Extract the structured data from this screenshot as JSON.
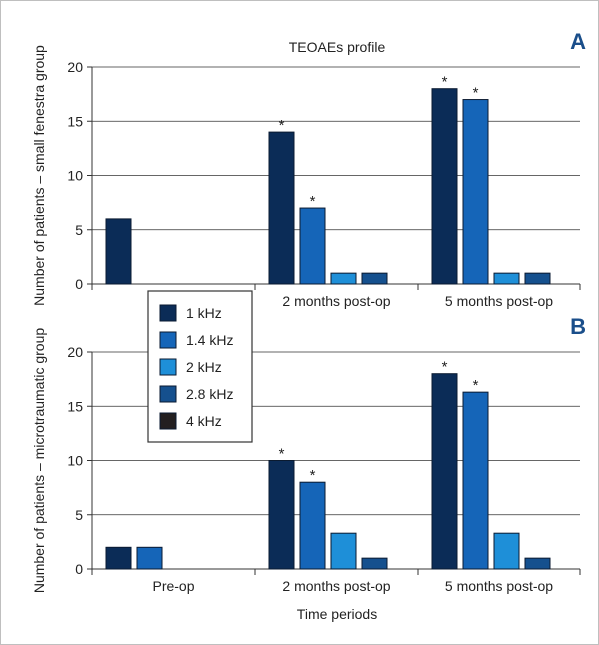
{
  "chart_data": {
    "type": "bar",
    "title": "TEOAEs profile",
    "xlabel": "Time periods",
    "categories": [
      "Pre-op",
      "2 months post-op",
      "5 months post-op"
    ],
    "legend": {
      "placement": "top-left-of-lower-panel",
      "entries": [
        "1 kHz",
        "1.4 kHz",
        "2 kHz",
        "2.8 kHz",
        "4 kHz"
      ]
    },
    "colors": [
      "#0b2c57",
      "#1565b8",
      "#1e8fd8",
      "#15508e",
      "#231f20"
    ],
    "significance_marker": "*",
    "panels": [
      {
        "letter": "A",
        "ylabel": "Number of patients – small fenestra group",
        "ylim": [
          0,
          20
        ],
        "yticks": [
          0,
          5,
          10,
          15,
          20
        ],
        "grid": true,
        "series": [
          {
            "name": "1 kHz",
            "values": [
              6,
              14,
              18
            ]
          },
          {
            "name": "1.4 kHz",
            "values": [
              0,
              7,
              17
            ]
          },
          {
            "name": "2 kHz",
            "values": [
              0,
              1,
              1
            ]
          },
          {
            "name": "2.8 kHz",
            "values": [
              0,
              1,
              1
            ]
          },
          {
            "name": "4 kHz",
            "values": [
              0,
              0,
              0
            ]
          }
        ],
        "significant": [
          [
            0,
            1
          ],
          [
            0,
            2
          ],
          [
            1,
            1
          ],
          [
            1,
            2
          ]
        ]
      },
      {
        "letter": "B",
        "ylabel": "Number of patients – microtraumatic group",
        "ylim": [
          0,
          20
        ],
        "yticks": [
          0,
          5,
          10,
          15,
          20
        ],
        "grid": true,
        "series": [
          {
            "name": "1 kHz",
            "values": [
              2,
              10,
              18
            ]
          },
          {
            "name": "1.4 kHz",
            "values": [
              2,
              8,
              16.3
            ]
          },
          {
            "name": "2 kHz",
            "values": [
              0,
              3.3,
              3.3
            ]
          },
          {
            "name": "2.8 kHz",
            "values": [
              0,
              1,
              1
            ]
          },
          {
            "name": "4 kHz",
            "values": [
              0,
              0,
              0
            ]
          }
        ],
        "significant": [
          [
            0,
            1
          ],
          [
            0,
            2
          ],
          [
            1,
            1
          ],
          [
            1,
            2
          ]
        ]
      }
    ]
  }
}
